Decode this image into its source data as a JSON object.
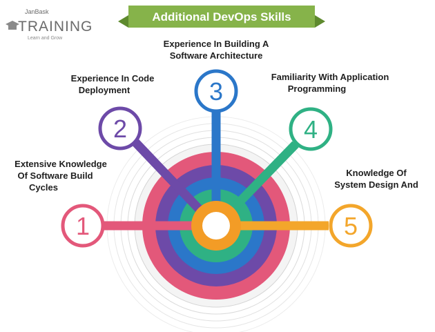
{
  "banner": {
    "title": "Additional DevOps Skills"
  },
  "logo": {
    "brand_top": "JanBask",
    "brand_main": "TRAINING",
    "tagline": "Learn and Grow"
  },
  "skills": [
    {
      "number": "1",
      "lines": [
        "Extensive Knowledge",
        "Of Software Build",
        "Cycles"
      ],
      "color": "#e3587a"
    },
    {
      "number": "2",
      "lines": [
        "Experience In Code",
        "Deployment"
      ],
      "color": "#6d4aa8"
    },
    {
      "number": "3",
      "lines": [
        "Experience In Building A",
        "Software Architecture"
      ],
      "color": "#2b77c9"
    },
    {
      "number": "4",
      "lines": [
        "Familiarity With Application",
        "Programming"
      ],
      "color": "#2fb184"
    },
    {
      "number": "5",
      "lines": [
        "Knowledge Of",
        "System Design And"
      ],
      "color": "#f3a62b"
    }
  ],
  "colors": {
    "banner": "#86b34a",
    "banner_dark": "#5e8a2e",
    "hub_core": "#f39c26"
  }
}
